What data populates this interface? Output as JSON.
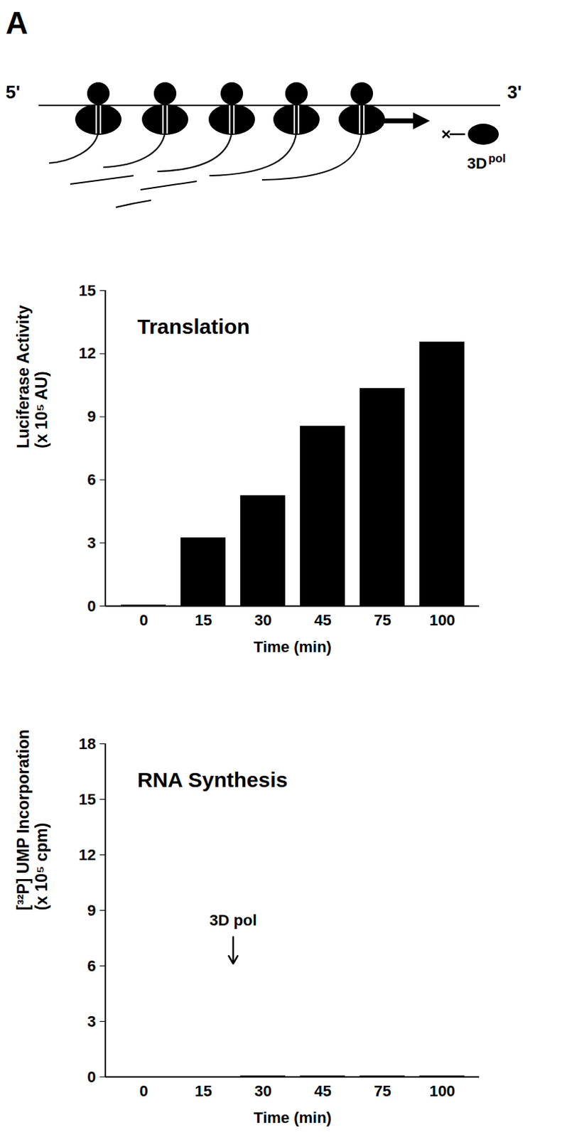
{
  "panel_label": "A",
  "diagram": {
    "five_prime": "5'",
    "three_prime": "3'",
    "polymerase": "3D pol"
  },
  "chart_data": [
    {
      "type": "bar",
      "title": "Translation",
      "xlabel": "Time (min)",
      "ylabel": "Luciferase Activity\n(x 10⁵ AU)",
      "categories": [
        "0",
        "15",
        "30",
        "45",
        "75",
        "100"
      ],
      "values": [
        0,
        3.2,
        5.2,
        8.5,
        10.3,
        12.5
      ],
      "color": "#000000",
      "ylim": [
        0,
        15
      ],
      "yticks": [
        0,
        3,
        6,
        9,
        12,
        15
      ]
    },
    {
      "type": "bar",
      "title": "RNA Synthesis",
      "xlabel": "Time (min)",
      "ylabel": "[³²P] UMP Incorporation\n(x 10⁵ cpm)",
      "categories": [
        "0",
        "15",
        "30",
        "45",
        "75",
        "100"
      ],
      "values": [
        null,
        null,
        0,
        0,
        0,
        0
      ],
      "color": "#000000",
      "ylim": [
        0,
        18
      ],
      "yticks": [
        0,
        3,
        6,
        9,
        12,
        15,
        18
      ],
      "annotations": [
        {
          "text": "3D pol"
        }
      ]
    }
  ]
}
